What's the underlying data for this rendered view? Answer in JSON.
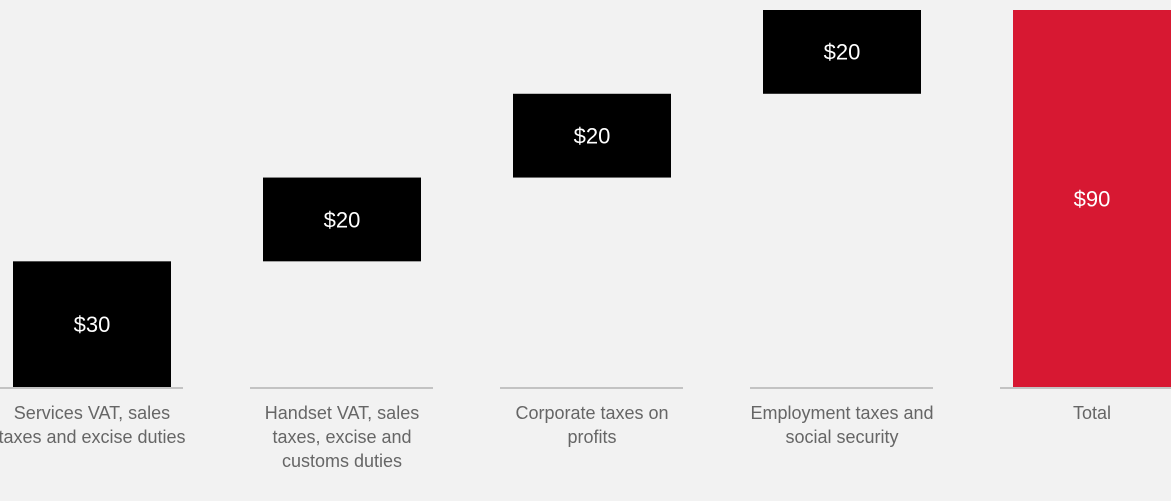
{
  "chart_data": {
    "type": "waterfall",
    "categories": [
      "Services VAT, sales taxes and excise duties",
      "Handset VAT, sales taxes, excise and customs duties",
      "Corporate taxes on profits",
      "Employment taxes and social security",
      "Total"
    ],
    "values": [
      30,
      20,
      20,
      20,
      90
    ],
    "value_labels": [
      "$30",
      "$20",
      "$20",
      "$20",
      "$90"
    ],
    "is_total": [
      false,
      false,
      false,
      false,
      true
    ],
    "colors": [
      "#000000",
      "#000000",
      "#000000",
      "#000000",
      "#d71832"
    ],
    "ylim": [
      0,
      90
    ]
  }
}
